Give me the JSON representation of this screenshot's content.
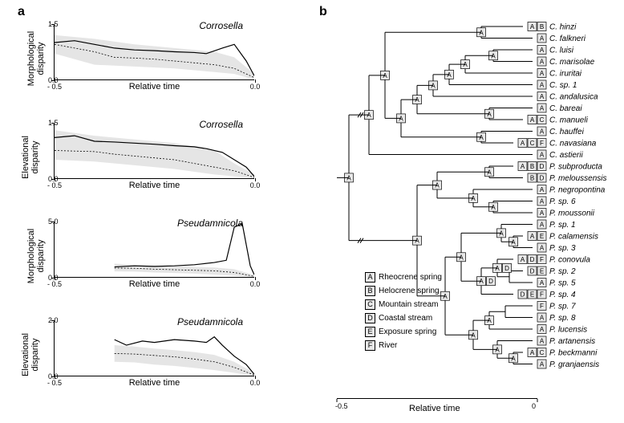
{
  "panelA": "a",
  "panelB": "b",
  "xAxisLabel": "Relative time",
  "phyloXLabel": "Relative time",
  "charts": [
    {
      "ylabel": "Morphological\ndisparity",
      "title": "Corrosella",
      "ylim": [
        0,
        1.5
      ],
      "yticks": [
        0.0,
        1.5
      ],
      "xlim": [
        -0.5,
        0.0
      ],
      "xticks": [
        -0.5,
        0.0
      ],
      "solid": [
        [
          -0.5,
          1.0
        ],
        [
          -0.45,
          1.05
        ],
        [
          -0.4,
          0.95
        ],
        [
          -0.35,
          0.85
        ],
        [
          -0.3,
          0.8
        ],
        [
          -0.25,
          0.78
        ],
        [
          -0.2,
          0.75
        ],
        [
          -0.15,
          0.73
        ],
        [
          -0.12,
          0.7
        ],
        [
          -0.08,
          0.85
        ],
        [
          -0.05,
          0.95
        ],
        [
          -0.02,
          0.5
        ],
        [
          0,
          0.1
        ]
      ],
      "dotted": [
        [
          -0.5,
          0.95
        ],
        [
          -0.4,
          0.75
        ],
        [
          -0.35,
          0.6
        ],
        [
          -0.3,
          0.58
        ],
        [
          -0.25,
          0.55
        ],
        [
          -0.2,
          0.5
        ],
        [
          -0.15,
          0.45
        ],
        [
          -0.1,
          0.4
        ],
        [
          -0.05,
          0.3
        ],
        [
          0,
          0.05
        ]
      ],
      "band": [
        [
          -0.5,
          0.7,
          1.2
        ],
        [
          -0.4,
          0.4,
          1.1
        ],
        [
          -0.3,
          0.35,
          0.95
        ],
        [
          -0.2,
          0.3,
          0.85
        ],
        [
          -0.1,
          0.2,
          0.75
        ],
        [
          -0.05,
          0.15,
          0.6
        ],
        [
          0,
          0,
          0.15
        ]
      ]
    },
    {
      "ylabel": "Elevational\ndisparity",
      "title": "Corrosella",
      "ylim": [
        0,
        1.5
      ],
      "yticks": [
        0.0,
        1.5
      ],
      "xlim": [
        -0.5,
        0.0
      ],
      "xticks": [
        -0.5,
        0.0
      ],
      "solid": [
        [
          -0.5,
          1.1
        ],
        [
          -0.45,
          1.15
        ],
        [
          -0.4,
          1.0
        ],
        [
          -0.35,
          0.98
        ],
        [
          -0.3,
          0.95
        ],
        [
          -0.25,
          0.92
        ],
        [
          -0.2,
          0.88
        ],
        [
          -0.15,
          0.85
        ],
        [
          -0.12,
          0.8
        ],
        [
          -0.08,
          0.7
        ],
        [
          -0.05,
          0.5
        ],
        [
          -0.02,
          0.3
        ],
        [
          0,
          0.05
        ]
      ],
      "dotted": [
        [
          -0.5,
          0.75
        ],
        [
          -0.4,
          0.72
        ],
        [
          -0.35,
          0.65
        ],
        [
          -0.3,
          0.6
        ],
        [
          -0.25,
          0.55
        ],
        [
          -0.2,
          0.5
        ],
        [
          -0.15,
          0.4
        ],
        [
          -0.1,
          0.3
        ],
        [
          -0.05,
          0.2
        ],
        [
          0,
          0.02
        ]
      ],
      "band": [
        [
          -0.5,
          0.5,
          1.3
        ],
        [
          -0.4,
          0.45,
          1.15
        ],
        [
          -0.3,
          0.35,
          1.05
        ],
        [
          -0.2,
          0.25,
          0.95
        ],
        [
          -0.1,
          0.1,
          0.75
        ],
        [
          -0.05,
          0.05,
          0.4
        ],
        [
          0,
          0,
          0.1
        ]
      ]
    },
    {
      "ylabel": "Morphological\ndisparity",
      "title": "Pseudamnicola",
      "ylim": [
        0,
        5.0
      ],
      "yticks": [
        0.0,
        5.0
      ],
      "xlim": [
        -0.5,
        0.0
      ],
      "xticks": [
        -0.5,
        0.0
      ],
      "solid": [
        [
          -0.35,
          0.9
        ],
        [
          -0.3,
          1.0
        ],
        [
          -0.25,
          0.95
        ],
        [
          -0.2,
          1.0
        ],
        [
          -0.15,
          1.1
        ],
        [
          -0.1,
          1.3
        ],
        [
          -0.07,
          1.5
        ],
        [
          -0.05,
          4.5
        ],
        [
          -0.03,
          4.8
        ],
        [
          -0.01,
          1.0
        ],
        [
          0,
          0.2
        ]
      ],
      "dotted": [
        [
          -0.35,
          0.8
        ],
        [
          -0.3,
          0.78
        ],
        [
          -0.25,
          0.7
        ],
        [
          -0.2,
          0.65
        ],
        [
          -0.15,
          0.6
        ],
        [
          -0.1,
          0.55
        ],
        [
          -0.05,
          0.4
        ],
        [
          0,
          0.05
        ]
      ],
      "band": [
        [
          -0.35,
          0.5,
          1.2
        ],
        [
          -0.3,
          0.48,
          1.1
        ],
        [
          -0.25,
          0.4,
          1.0
        ],
        [
          -0.2,
          0.35,
          0.95
        ],
        [
          -0.15,
          0.3,
          0.9
        ],
        [
          -0.1,
          0.2,
          0.85
        ],
        [
          -0.05,
          0.1,
          0.7
        ],
        [
          0,
          0,
          0.15
        ]
      ]
    },
    {
      "ylabel": "Elevational\ndisparity",
      "title": "Pseudamnicola",
      "ylim": [
        0,
        2.0
      ],
      "yticks": [
        0.0,
        2.0
      ],
      "xlim": [
        -0.5,
        0.0
      ],
      "xticks": [
        -0.5,
        0.0
      ],
      "solid": [
        [
          -0.35,
          1.3
        ],
        [
          -0.32,
          1.1
        ],
        [
          -0.28,
          1.25
        ],
        [
          -0.25,
          1.2
        ],
        [
          -0.2,
          1.3
        ],
        [
          -0.15,
          1.25
        ],
        [
          -0.12,
          1.2
        ],
        [
          -0.1,
          1.4
        ],
        [
          -0.08,
          1.1
        ],
        [
          -0.05,
          0.7
        ],
        [
          -0.02,
          0.4
        ],
        [
          0,
          0.05
        ]
      ],
      "dotted": [
        [
          -0.35,
          0.8
        ],
        [
          -0.3,
          0.78
        ],
        [
          -0.25,
          0.73
        ],
        [
          -0.2,
          0.68
        ],
        [
          -0.15,
          0.6
        ],
        [
          -0.1,
          0.5
        ],
        [
          -0.05,
          0.3
        ],
        [
          0,
          0.02
        ]
      ],
      "band": [
        [
          -0.35,
          0.5,
          1.1
        ],
        [
          -0.3,
          0.48,
          1.05
        ],
        [
          -0.25,
          0.4,
          0.98
        ],
        [
          -0.2,
          0.35,
          0.92
        ],
        [
          -0.15,
          0.28,
          0.85
        ],
        [
          -0.1,
          0.2,
          0.75
        ],
        [
          -0.05,
          0.1,
          0.5
        ],
        [
          0,
          0,
          0.1
        ]
      ]
    }
  ],
  "legend": [
    {
      "code": "A",
      "label": "Rheocrene spring"
    },
    {
      "code": "B",
      "label": "Helocrene spring"
    },
    {
      "code": "C",
      "label": "Mountain stream"
    },
    {
      "code": "D",
      "label": "Coastal stream"
    },
    {
      "code": "E",
      "label": "Exposure spring"
    },
    {
      "code": "F",
      "label": "River"
    }
  ],
  "species": [
    {
      "name": "C. hinzi",
      "states": [
        "A",
        "B"
      ]
    },
    {
      "name": "C. falkneri",
      "states": [
        "A"
      ]
    },
    {
      "name": "C. luisi",
      "states": [
        "A"
      ]
    },
    {
      "name": "C. marisolae",
      "states": [
        "A"
      ]
    },
    {
      "name": "C. iruritai",
      "states": [
        "A"
      ]
    },
    {
      "name": "C. sp. 1",
      "states": [
        "A"
      ]
    },
    {
      "name": "C. andalusica",
      "states": [
        "A"
      ]
    },
    {
      "name": "C. bareai",
      "states": [
        "A"
      ]
    },
    {
      "name": "C. manueli",
      "states": [
        "A",
        "C"
      ]
    },
    {
      "name": "C. hauffei",
      "states": [
        "A"
      ]
    },
    {
      "name": "C. navasiana",
      "states": [
        "A",
        "C",
        "F"
      ]
    },
    {
      "name": "C. astierii",
      "states": [
        "A"
      ]
    },
    {
      "name": "P. subproducta",
      "states": [
        "A",
        "B",
        "D"
      ]
    },
    {
      "name": "P. meloussensis",
      "states": [
        "B",
        "D"
      ]
    },
    {
      "name": "P. negropontina",
      "states": [
        "A"
      ]
    },
    {
      "name": "P. sp. 6",
      "states": [
        "A"
      ]
    },
    {
      "name": "P. moussonii",
      "states": [
        "A"
      ]
    },
    {
      "name": "P. sp. 1",
      "states": [
        "A"
      ]
    },
    {
      "name": "P. calamensis",
      "states": [
        "A",
        "E"
      ]
    },
    {
      "name": "P. sp. 3",
      "states": [
        "A"
      ]
    },
    {
      "name": "P. conovula",
      "states": [
        "A",
        "D",
        "F"
      ]
    },
    {
      "name": "P. sp. 2",
      "states": [
        "D",
        "E"
      ]
    },
    {
      "name": "P. sp. 5",
      "states": [
        "A"
      ]
    },
    {
      "name": "P. sp. 4",
      "states": [
        "D",
        "E",
        "F"
      ]
    },
    {
      "name": "P. sp. 7",
      "states": [
        "F"
      ]
    },
    {
      "name": "P. sp. 8",
      "states": [
        "A"
      ]
    },
    {
      "name": "P. lucensis",
      "states": [
        "A"
      ]
    },
    {
      "name": "P. artanensis",
      "states": [
        "A"
      ]
    },
    {
      "name": "P. beckmanni",
      "states": [
        "A",
        "C"
      ]
    },
    {
      "name": "P. granjaensis",
      "states": [
        "A"
      ]
    }
  ],
  "phyloXlim": [
    -0.5,
    0.0
  ],
  "phyloXticks": [
    -0.5,
    0.0
  ],
  "colors": {
    "band": "#e5e5e5",
    "line": "#000000",
    "bg": "#ffffff",
    "boxbg": "#e8e8e8"
  }
}
